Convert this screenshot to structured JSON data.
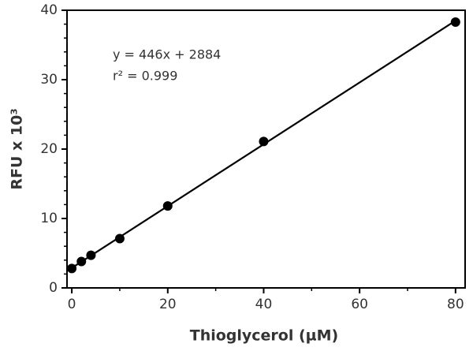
{
  "chart_data": {
    "type": "scatter",
    "x_label": "Thioglycerol (µM)",
    "y_label": "RFU x 10³",
    "annotations": [
      "y = 446x + 2884",
      "r² = 0.999"
    ],
    "x": [
      0,
      2,
      4,
      10,
      20,
      40,
      80
    ],
    "values": [
      2.8,
      3.8,
      4.7,
      7.1,
      11.8,
      21.1,
      38.3
    ],
    "color": "#000000",
    "fit": {
      "x": [
        0,
        80
      ],
      "values": [
        2.88,
        38.5
      ]
    },
    "xlim": [
      -1,
      82
    ],
    "ylim": [
      0,
      40
    ],
    "xticks": [
      0,
      20,
      40,
      60,
      80
    ],
    "yticks": [
      0,
      10,
      20,
      30,
      40
    ],
    "xminorticks": [
      10,
      30,
      50,
      70
    ],
    "yminorticks": [
      2,
      4,
      6,
      8,
      12,
      14,
      16,
      18,
      22,
      24,
      26,
      28,
      32,
      34,
      36,
      38
    ]
  }
}
